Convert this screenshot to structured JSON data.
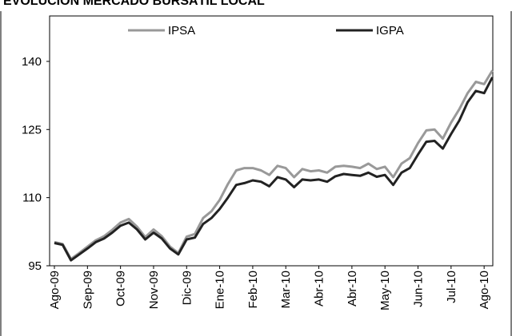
{
  "chart_data": {
    "type": "line",
    "title": "EVOLUCIÓN MERCADO BURSÁTIL LOCAL",
    "categories": [
      "Ago-09",
      null,
      null,
      null,
      "Sep-09",
      null,
      null,
      null,
      "Oct-09",
      null,
      null,
      null,
      "Nov-09",
      null,
      null,
      null,
      "Dic-09",
      null,
      null,
      null,
      "Ene-10",
      null,
      null,
      null,
      "Feb-10",
      null,
      null,
      null,
      "Mar-10",
      null,
      null,
      null,
      "Abr-10",
      null,
      null,
      null,
      "Abr-10",
      null,
      null,
      null,
      "May-10",
      null,
      null,
      null,
      "Jun-10",
      null,
      null,
      null,
      "Jul-10",
      null,
      null,
      null,
      "Ago-10",
      null
    ],
    "series": [
      {
        "name": "IPSA",
        "color": "#999999",
        "values": [
          100.2,
          99.8,
          96.5,
          97.8,
          99.2,
          100.6,
          101.5,
          102.9,
          104.5,
          105.3,
          103.6,
          101.3,
          103,
          101.5,
          99.2,
          97.8,
          101.4,
          102,
          105.5,
          107,
          109.5,
          113,
          116,
          116.5,
          116.5,
          116,
          115,
          117,
          116.5,
          114.5,
          116.3,
          115.8,
          116,
          115.5,
          116.8,
          117,
          116.8,
          116.5,
          117.5,
          116.3,
          116.8,
          114.5,
          117.5,
          118.7,
          122,
          124.8,
          125,
          123,
          126.5,
          129.5,
          133,
          135.5,
          135,
          138
        ]
      },
      {
        "name": "IGPA",
        "color": "#222222",
        "values": [
          100,
          99.6,
          96.2,
          97.5,
          98.8,
          100.2,
          101,
          102.3,
          103.8,
          104.5,
          103,
          100.8,
          102.3,
          101,
          98.8,
          97.5,
          100.8,
          101.2,
          104.2,
          105.5,
          107.5,
          110,
          112.8,
          113.2,
          113.8,
          113.5,
          112.5,
          114.5,
          114,
          112.3,
          114,
          113.8,
          114,
          113.5,
          114.7,
          115.2,
          115,
          114.8,
          115.5,
          114.6,
          115,
          112.8,
          115.5,
          116.5,
          119.5,
          122.3,
          122.5,
          120.8,
          124,
          127,
          131,
          133.5,
          133,
          136.5
        ]
      }
    ],
    "ylim": [
      95,
      150
    ],
    "yticks": [
      95,
      110,
      125,
      140
    ]
  }
}
